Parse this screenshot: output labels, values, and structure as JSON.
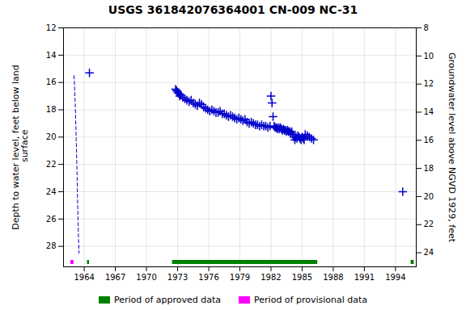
{
  "chart_data": {
    "type": "scatter",
    "title": "USGS 361842076364001 CN-009 NC-31",
    "ylabel": "Depth to water level, feet below land\n surface",
    "y2label": "Groundwater level above NGVD 1929, feet",
    "xlim": [
      1962,
      1996
    ],
    "xticks": [
      1964,
      1967,
      1970,
      1973,
      1976,
      1979,
      1982,
      1985,
      1988,
      1991,
      1994
    ],
    "ylim": [
      29.5,
      12
    ],
    "yticks": [
      12,
      14,
      16,
      18,
      20,
      22,
      24,
      26,
      28
    ],
    "y2lim": [
      25,
      8
    ],
    "y2ticks": [
      8,
      10,
      12,
      14,
      16,
      18,
      20,
      22,
      24
    ],
    "grid": true,
    "legend": "bottom",
    "series": [
      {
        "type": "line",
        "line_style": "dashed",
        "color": "#0000cc",
        "x": [
          1963.0,
          1963.05,
          1963.1,
          1963.15,
          1963.2,
          1963.25,
          1963.3,
          1963.35,
          1963.4,
          1963.45,
          1963.5
        ],
        "values": [
          15.5,
          16.0,
          17.0,
          18.0,
          19.5,
          21.0,
          22.5,
          24.5,
          26.0,
          27.5,
          28.5
        ]
      },
      {
        "type": "scatter",
        "marker": "+",
        "color": "#0000cc",
        "x": [
          1964.5,
          1972.8,
          1972.9,
          1973.0,
          1973.1,
          1973.2,
          1973.3,
          1973.5,
          1973.7,
          1973.9,
          1974.1,
          1974.3,
          1974.5,
          1974.7,
          1974.9,
          1975.1,
          1975.3,
          1975.5,
          1975.7,
          1975.9,
          1976.1,
          1976.3,
          1976.5,
          1976.7,
          1976.9,
          1977.1,
          1977.3,
          1977.5,
          1977.7,
          1977.9,
          1978.1,
          1978.3,
          1978.5,
          1978.7,
          1978.9,
          1979.1,
          1979.3,
          1979.5,
          1979.7,
          1979.9,
          1980.1,
          1980.3,
          1980.5,
          1980.7,
          1980.9,
          1981.1,
          1981.3,
          1981.5,
          1981.7,
          1981.9,
          1982.0,
          1982.1,
          1982.2,
          1982.3,
          1982.4,
          1982.5,
          1982.6,
          1982.7,
          1982.8,
          1982.9,
          1983.0,
          1983.1,
          1983.2,
          1983.3,
          1983.4,
          1983.5,
          1983.6,
          1983.7,
          1983.8,
          1983.9,
          1984.0,
          1984.1,
          1984.2,
          1984.3,
          1984.4,
          1984.5,
          1984.6,
          1984.7,
          1984.8,
          1984.9,
          1985.0,
          1985.1,
          1985.2,
          1985.3,
          1985.5,
          1985.7,
          1985.9,
          1986.1,
          1994.7
        ],
        "values": [
          15.3,
          16.5,
          16.6,
          16.7,
          16.8,
          17.0,
          16.9,
          17.1,
          17.2,
          17.3,
          17.4,
          17.3,
          17.5,
          17.6,
          17.7,
          17.5,
          17.6,
          17.8,
          17.9,
          18.0,
          18.1,
          18.0,
          18.1,
          18.2,
          18.2,
          18.1,
          18.3,
          18.3,
          18.4,
          18.5,
          18.4,
          18.5,
          18.6,
          18.7,
          18.6,
          18.7,
          18.8,
          18.7,
          18.9,
          19.0,
          18.9,
          19.0,
          19.1,
          19.1,
          19.2,
          19.1,
          19.2,
          19.2,
          19.3,
          19.2,
          17.0,
          17.5,
          18.5,
          19.2,
          19.3,
          19.3,
          19.4,
          19.3,
          19.4,
          19.3,
          19.4,
          19.5,
          19.4,
          19.5,
          19.5,
          19.6,
          19.5,
          19.6,
          19.6,
          19.7,
          19.6,
          19.8,
          20.0,
          20.2,
          20.0,
          20.1,
          19.9,
          20.0,
          20.1,
          20.2,
          20.0,
          20.1,
          20.2,
          19.8,
          19.9,
          20.0,
          20.1,
          20.2,
          24.0
        ]
      },
      {
        "type": "bar",
        "name": "Period of approved data",
        "color": "#008000",
        "periods": [
          [
            1964.3,
            1964.5
          ],
          [
            1972.5,
            1986.5
          ],
          [
            1995.5,
            1995.8
          ]
        ]
      },
      {
        "type": "bar",
        "name": "Period of provisional data",
        "color": "#ff00ff",
        "periods": [
          [
            1962.7,
            1963.0
          ]
        ]
      }
    ]
  }
}
